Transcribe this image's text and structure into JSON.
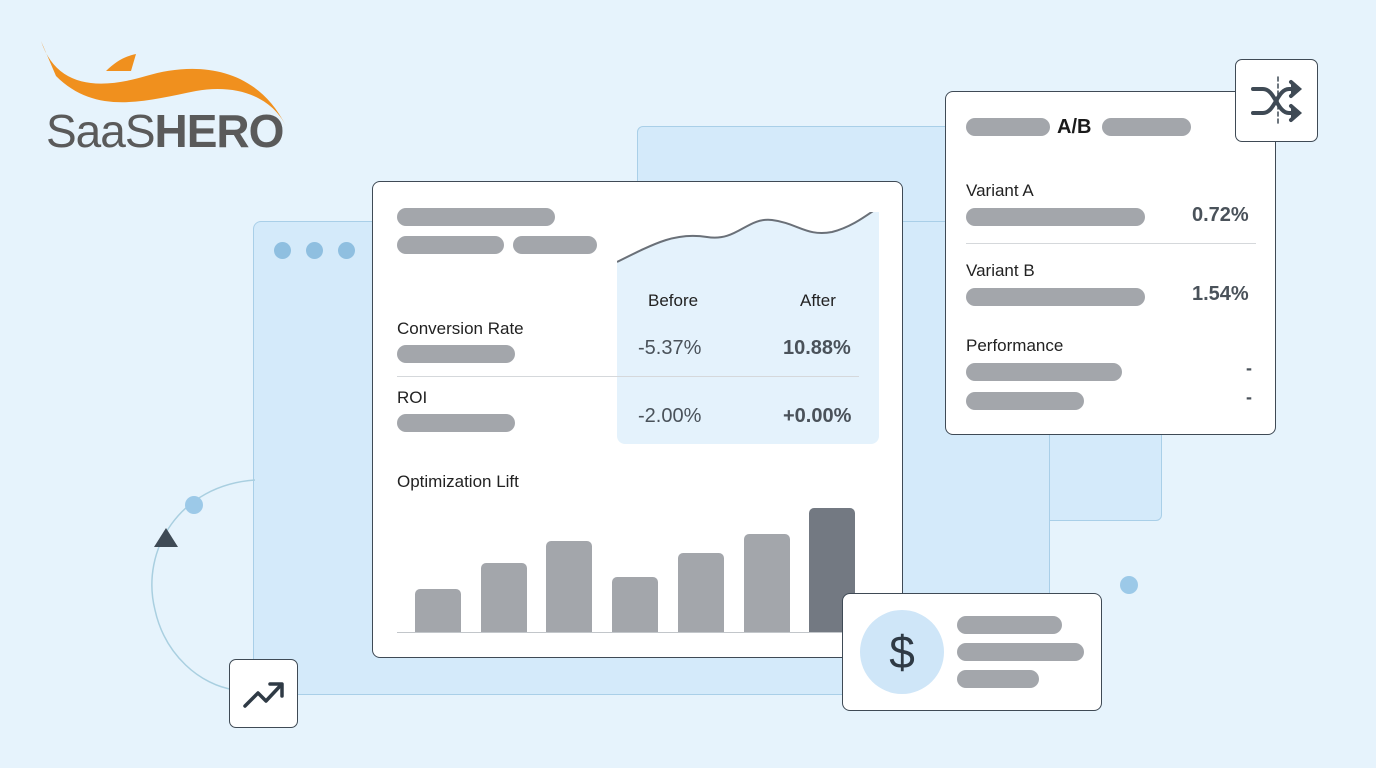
{
  "logo": {
    "text_light": "SaaS",
    "text_bold": "HERO",
    "colors": {
      "swoosh": "#f0901e",
      "text": "#5a5a5a"
    }
  },
  "main_card": {
    "table": {
      "col_before": "Before",
      "col_after": "After",
      "rows": [
        {
          "label": "Conversion Rate",
          "before": "-5.37%",
          "after": "10.88%"
        },
        {
          "label": "ROI",
          "before": "-2.00%",
          "after": "+0.00%"
        }
      ]
    },
    "lift": {
      "label": "Optimization Lift",
      "bars": [
        0.35,
        0.56,
        0.73,
        0.44,
        0.64,
        0.79,
        1.0
      ],
      "highlight_last": true
    }
  },
  "ab_card": {
    "title": "A/B",
    "icon": "shuffle-icon",
    "rows": [
      {
        "label": "Variant A",
        "value": "0.72%"
      },
      {
        "label": "Variant B",
        "value": "1.54%"
      }
    ],
    "performance": {
      "label": "Performance",
      "values": [
        "-",
        "-"
      ]
    }
  },
  "money_card": {
    "icon": "dollar-icon",
    "symbol": "$"
  },
  "trend_icon": "trending-up-icon",
  "colors": {
    "background": "#e6f3fc",
    "panel": "#d4eafa",
    "bar": "#a3a6ab",
    "bar_highlight": "#737982",
    "accent": "#9cc9e8"
  }
}
